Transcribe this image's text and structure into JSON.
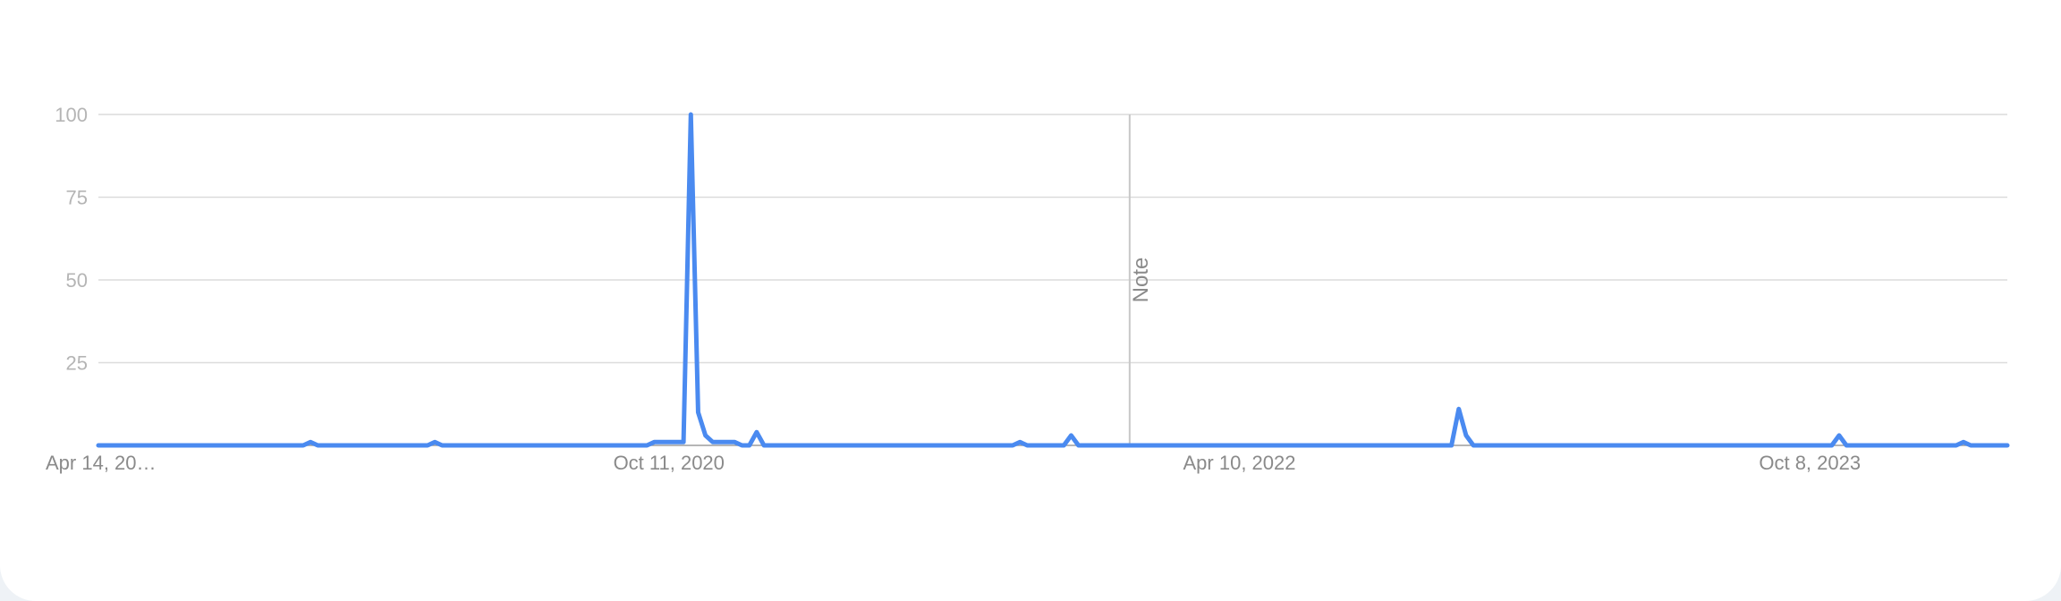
{
  "chart_data": {
    "type": "line",
    "title": "",
    "xlabel": "",
    "ylabel": "",
    "ylim": [
      0,
      100
    ],
    "y_ticks": [
      25,
      50,
      75,
      100
    ],
    "x_tick_labels": [
      "Apr 14, 20…",
      "Oct 11, 2020",
      "Apr 10, 2022",
      "Oct 8, 2023"
    ],
    "x_tick_weeks": [
      0,
      78,
      156,
      234
    ],
    "grid": true,
    "annotations": [
      {
        "label": "Note",
        "week": 141
      }
    ],
    "series": [
      {
        "color": "#4a8af0",
        "week_count": 262,
        "points": [
          [
            0,
            0
          ],
          [
            28,
            0
          ],
          [
            29,
            1
          ],
          [
            30,
            0
          ],
          [
            45,
            0
          ],
          [
            46,
            1
          ],
          [
            47,
            0
          ],
          [
            75,
            0
          ],
          [
            76,
            1
          ],
          [
            80,
            1
          ],
          [
            81,
            100
          ],
          [
            82,
            10
          ],
          [
            83,
            3
          ],
          [
            84,
            1
          ],
          [
            87,
            1
          ],
          [
            88,
            0
          ],
          [
            89,
            0
          ],
          [
            90,
            4
          ],
          [
            91,
            0
          ],
          [
            125,
            0
          ],
          [
            126,
            1
          ],
          [
            127,
            0
          ],
          [
            132,
            0
          ],
          [
            133,
            3
          ],
          [
            134,
            0
          ],
          [
            185,
            0
          ],
          [
            186,
            11
          ],
          [
            187,
            3
          ],
          [
            188,
            0
          ],
          [
            237,
            0
          ],
          [
            238,
            3
          ],
          [
            239,
            0
          ],
          [
            254,
            0
          ],
          [
            255,
            1
          ],
          [
            256,
            0
          ],
          [
            261,
            0
          ]
        ]
      }
    ]
  }
}
